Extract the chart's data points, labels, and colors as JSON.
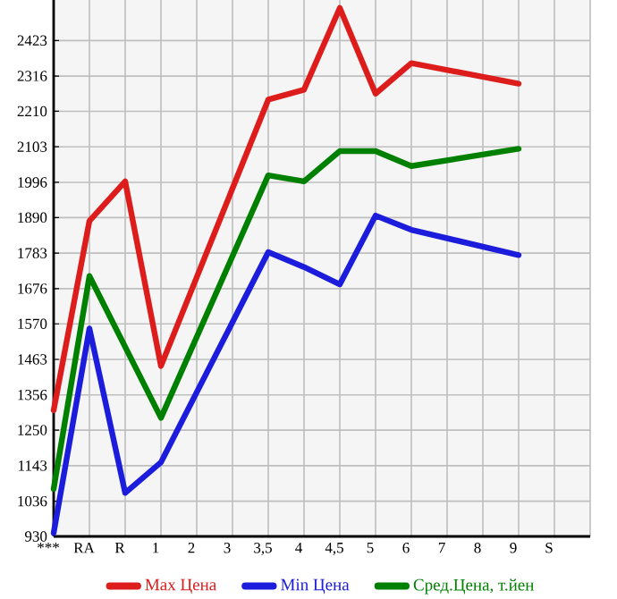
{
  "chart_data": {
    "type": "line",
    "categories": [
      "***",
      "RA",
      "R",
      "1",
      "2",
      "3",
      "3,5",
      "4",
      "4,5",
      "5",
      "6",
      "7",
      "8",
      "9",
      "S"
    ],
    "series": [
      {
        "name": "Max Цена",
        "color": "#dd1c1c",
        "values": [
          1310,
          1880,
          1999,
          1443,
          null,
          null,
          2245,
          2275,
          2521,
          2263,
          2355,
          null,
          null,
          2293,
          null
        ]
      },
      {
        "name": "Min Цена",
        "color": "#1c1cdc",
        "values": [
          940,
          1556,
          1061,
          1153,
          null,
          null,
          1786,
          1741,
          1689,
          1896,
          1853,
          null,
          null,
          1777,
          null
        ]
      },
      {
        "name": "Сред.Цена, т.йен",
        "color": "#008000",
        "values": [
          1073,
          1714,
          null,
          1287,
          null,
          null,
          2017,
          1999,
          2090,
          2090,
          2045,
          null,
          null,
          2097,
          null
        ]
      }
    ],
    "ylim": [
      930,
      2545
    ],
    "yticks": [
      930,
      1036,
      1143,
      1250,
      1356,
      1463,
      1570,
      1676,
      1783,
      1890,
      1996,
      2103,
      2210,
      2316,
      2423
    ],
    "grid": true,
    "legend": "bottom",
    "marker": "none",
    "line_style": "solid"
  }
}
